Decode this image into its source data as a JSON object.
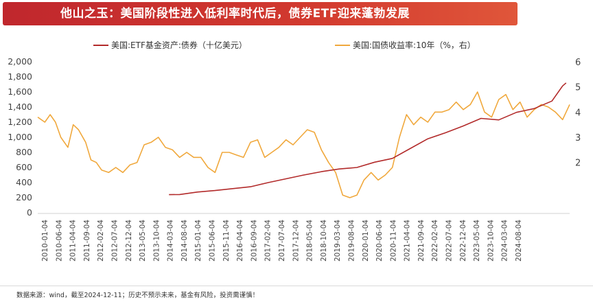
{
  "banner": {
    "title": "他山之玉：美国阶段性进入低利率时代后，债券ETF迎来蓬勃发展"
  },
  "footnote": "数据来源：wind，截至2024-12-11；历史不预示未来，基金有风险，投资需谨慎！",
  "colors": {
    "banner": "#c8312e",
    "etf_line": "#b22a2a",
    "yield_line": "#f0a83c",
    "axis_text": "#444444"
  },
  "chart_data": {
    "type": "line",
    "legend": [
      "美国:ETF基金资产:债券（十亿美元）",
      "美国:国债收益率:10年（%，右）"
    ],
    "legend_position": "top",
    "left_axis": {
      "min": 0,
      "max": 2000,
      "ticks": [
        "0",
        "200",
        "400",
        "600",
        "800",
        "1,000",
        "1,200",
        "1,400",
        "1,600",
        "1,800",
        "2,000"
      ]
    },
    "right_axis": {
      "min": 0,
      "max": 6,
      "ticks": [
        "2",
        "3",
        "4",
        "5",
        "6"
      ]
    },
    "x_ticks": [
      "2010-01-04",
      "2010-06-04",
      "2011-04-04",
      "2011-09-04",
      "2012-02-04",
      "2012-07-04",
      "2012-12-04",
      "2013-05-04",
      "2013-10-04",
      "2014-03-04",
      "2014-08-04",
      "2015-01-04",
      "2015-06-04",
      "2015-11-04",
      "2016-04-04",
      "2016-09-04",
      "2017-02-04",
      "2017-07-04",
      "2017-12-04",
      "2018-05-04",
      "2018-10-04",
      "2019-03-04",
      "2019-08-04",
      "2020-01-04",
      "2020-06-04",
      "2020-11-04",
      "2021-04-04",
      "2021-09-04",
      "2022-02-04",
      "2022-07-04",
      "2022-12-04",
      "2023-05-04",
      "2023-10-04",
      "2024-03-04",
      "2024-08-04"
    ],
    "series": [
      {
        "name": "美国:ETF基金资产:债券（十亿美元）",
        "axis": "left",
        "x": [
          3.7,
          4.0,
          4.5,
          5.0,
          5.5,
          6.0,
          6.5,
          7.0,
          7.5,
          8.0,
          8.5,
          9.0,
          9.5,
          10.0,
          10.5,
          11.0,
          11.5,
          12.0,
          12.5,
          13.0,
          13.5,
          14.0,
          14.5,
          14.8,
          14.9
        ],
        "values": [
          240,
          242,
          275,
          295,
          320,
          345,
          400,
          450,
          500,
          545,
          580,
          600,
          670,
          720,
          850,
          980,
          1060,
          1150,
          1250,
          1230,
          1330,
          1380,
          1480,
          1680,
          1720
        ]
      },
      {
        "name": "美国:国债收益率:10年（%，右）",
        "axis": "right",
        "x": [
          0.0,
          0.2,
          0.35,
          0.5,
          0.65,
          0.85,
          1.0,
          1.15,
          1.35,
          1.5,
          1.65,
          1.8,
          2.0,
          2.2,
          2.4,
          2.6,
          2.8,
          3.0,
          3.2,
          3.4,
          3.6,
          3.8,
          4.0,
          4.2,
          4.4,
          4.6,
          4.8,
          5.0,
          5.2,
          5.4,
          5.6,
          5.8,
          6.0,
          6.2,
          6.4,
          6.6,
          6.8,
          7.0,
          7.2,
          7.4,
          7.6,
          7.8,
          8.0,
          8.2,
          8.4,
          8.6,
          8.8,
          9.0,
          9.2,
          9.4,
          9.6,
          9.8,
          10.0,
          10.2,
          10.4,
          10.6,
          10.8,
          11.0,
          11.2,
          11.4,
          11.6,
          11.8,
          12.0,
          12.2,
          12.4,
          12.6,
          12.8,
          13.0,
          13.2,
          13.4,
          13.6,
          13.8,
          14.0,
          14.2,
          14.4,
          14.6,
          14.8,
          15.0
        ],
        "values": [
          3.8,
          3.6,
          3.9,
          3.6,
          3.0,
          2.6,
          3.5,
          3.3,
          2.8,
          2.1,
          2.0,
          1.7,
          1.6,
          1.8,
          1.6,
          1.9,
          2.0,
          2.7,
          2.8,
          3.0,
          2.6,
          2.5,
          2.2,
          2.4,
          2.2,
          2.2,
          1.8,
          1.6,
          2.4,
          2.4,
          2.3,
          2.2,
          2.8,
          2.9,
          2.2,
          2.4,
          2.6,
          2.9,
          2.7,
          3.0,
          3.3,
          3.2,
          2.5,
          2.0,
          1.6,
          0.7,
          0.6,
          0.7,
          1.3,
          1.6,
          1.3,
          1.5,
          1.8,
          3.0,
          3.9,
          3.5,
          3.8,
          3.6,
          4.0,
          4.0,
          4.1,
          4.4,
          4.1,
          4.3,
          4.8,
          4.0,
          3.8,
          4.5,
          4.7,
          4.1,
          4.4,
          3.8,
          4.1,
          4.3,
          4.2,
          4.0,
          3.7,
          4.3
        ]
      }
    ]
  }
}
